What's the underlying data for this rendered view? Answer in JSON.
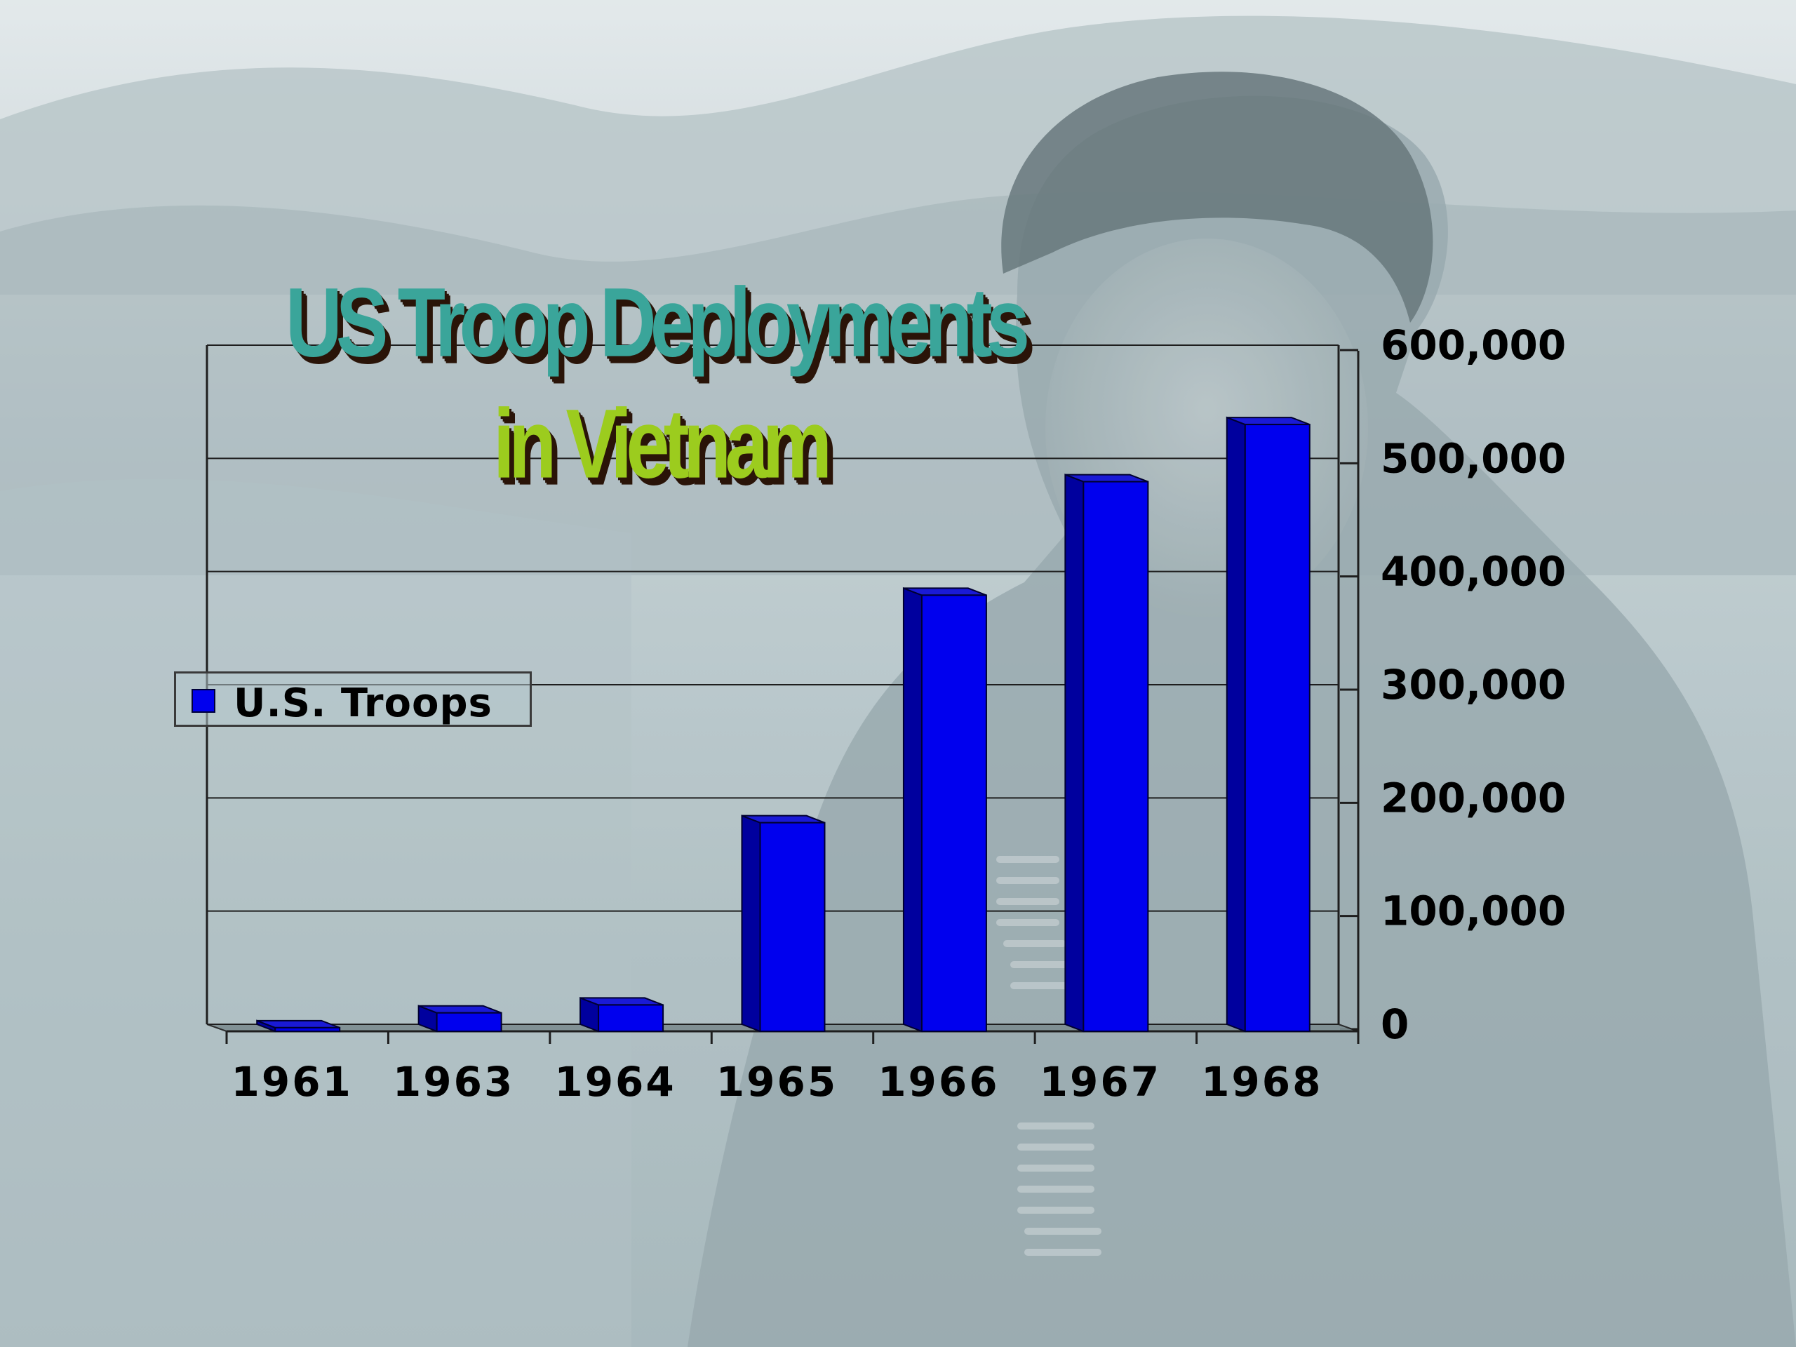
{
  "slide": {
    "title_line1": "US Troop Deployments",
    "title_line2": "in Vietnam",
    "background_description": "grayscale photo of a soldier",
    "colors": {
      "title_line1": "#3aa59a",
      "title_line2": "#9ccc1e",
      "bar_front": "#0000ee",
      "bar_side": "#00009e",
      "bar_top": "#1a1ad6"
    }
  },
  "chart_data": {
    "type": "bar",
    "categories": [
      "1961",
      "1963",
      "1964",
      "1965",
      "1966",
      "1967",
      "1968"
    ],
    "series": [
      {
        "name": "U.S. Troops",
        "values": [
          3200,
          16300,
          23300,
          184300,
          385300,
          485600,
          536100
        ]
      }
    ],
    "ylim": [
      0,
      600000
    ],
    "yticks": [
      {
        "value": 0,
        "label": "0"
      },
      {
        "value": 100000,
        "label": "100,000"
      },
      {
        "value": 200000,
        "label": "200,000"
      },
      {
        "value": 300000,
        "label": "300,000"
      },
      {
        "value": 400000,
        "label": "400,000"
      },
      {
        "value": 500000,
        "label": "500,000"
      },
      {
        "value": 600000,
        "label": "600,000"
      }
    ],
    "y_axis_side": "right",
    "grid": true,
    "legend_position": "left",
    "style": "3d-column"
  }
}
